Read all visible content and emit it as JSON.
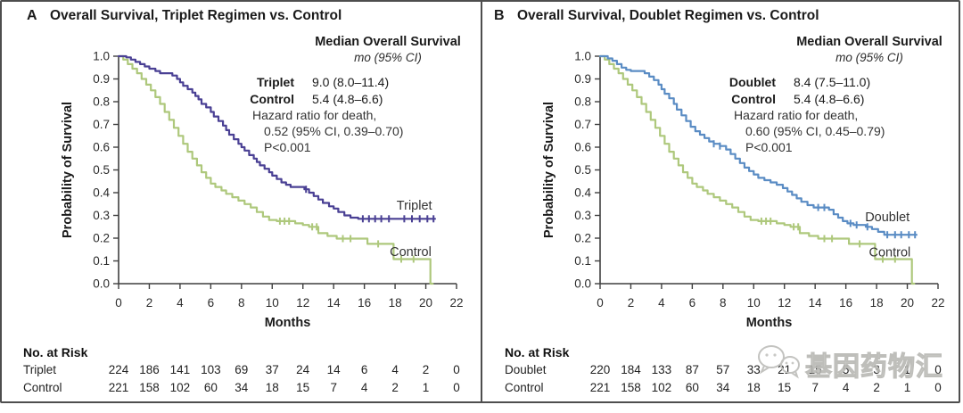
{
  "page": {
    "background": "#ffffff",
    "border_color": "#4e4e4e",
    "watermark": {
      "text": "基因药物汇",
      "icon": "chat-bubbles-icon"
    }
  },
  "chart_data": [
    {
      "type": "line",
      "subtype": "kaplan-meier-step",
      "panel_letter": "A",
      "title": "Overall Survival, Triplet Regimen vs. Control",
      "axes": {
        "xlabel": "Months",
        "ylabel": "Probability of Survival",
        "xlim": [
          0,
          22
        ],
        "ylim": [
          0.0,
          1.0
        ],
        "xticks": [
          0,
          2,
          4,
          6,
          8,
          10,
          12,
          14,
          16,
          18,
          20,
          22
        ],
        "yticks": [
          "1.0",
          "0.9",
          "0.8",
          "0.7",
          "0.6",
          "0.5",
          "0.4",
          "0.3",
          "0.2",
          "0.1",
          "0.0"
        ],
        "grid": false
      },
      "stats": {
        "header": "Median Overall Survival",
        "subheader": "mo (95% CI)",
        "rows": [
          {
            "name": "Triplet",
            "value": "9.0 (8.0–11.4)"
          },
          {
            "name": "Control",
            "value": "5.4 (4.8–6.6)"
          }
        ],
        "hazard_lines": [
          "Hazard ratio for death,",
          "0.52 (95% CI, 0.39–0.70)",
          "P<0.001"
        ]
      },
      "series": [
        {
          "name": "Triplet",
          "color": "#4a4094",
          "label_pos": [
            18.1,
            0.325
          ],
          "points": [
            [
              0,
              1.0
            ],
            [
              0.5,
              0.995
            ],
            [
              0.8,
              0.985
            ],
            [
              1.1,
              0.975
            ],
            [
              1.4,
              0.965
            ],
            [
              1.7,
              0.955
            ],
            [
              2.0,
              0.945
            ],
            [
              2.4,
              0.935
            ],
            [
              2.7,
              0.925
            ],
            [
              3.5,
              0.915
            ],
            [
              3.8,
              0.9
            ],
            [
              4.0,
              0.885
            ],
            [
              4.2,
              0.87
            ],
            [
              4.5,
              0.855
            ],
            [
              4.8,
              0.84
            ],
            [
              5.0,
              0.825
            ],
            [
              5.2,
              0.81
            ],
            [
              5.4,
              0.79
            ],
            [
              5.7,
              0.775
            ],
            [
              6.0,
              0.755
            ],
            [
              6.2,
              0.735
            ],
            [
              6.5,
              0.715
            ],
            [
              6.8,
              0.695
            ],
            [
              7.0,
              0.675
            ],
            [
              7.2,
              0.655
            ],
            [
              7.5,
              0.635
            ],
            [
              7.8,
              0.615
            ],
            [
              8.0,
              0.6
            ],
            [
              8.2,
              0.585
            ],
            [
              8.5,
              0.565
            ],
            [
              8.8,
              0.55
            ],
            [
              9.0,
              0.535
            ],
            [
              9.2,
              0.52
            ],
            [
              9.5,
              0.505
            ],
            [
              9.8,
              0.49
            ],
            [
              10.0,
              0.475
            ],
            [
              10.3,
              0.46
            ],
            [
              10.6,
              0.445
            ],
            [
              10.9,
              0.435
            ],
            [
              11.2,
              0.425
            ],
            [
              12.1,
              0.415
            ],
            [
              12.4,
              0.4
            ],
            [
              12.7,
              0.385
            ],
            [
              13.0,
              0.37
            ],
            [
              13.3,
              0.355
            ],
            [
              13.7,
              0.34
            ],
            [
              14.0,
              0.33
            ],
            [
              14.3,
              0.315
            ],
            [
              14.7,
              0.3
            ],
            [
              15.1,
              0.29
            ],
            [
              15.6,
              0.285
            ],
            [
              20.6,
              0.285
            ]
          ],
          "censors": [
            12.2,
            15.9,
            16.3,
            16.7,
            17.1,
            17.6,
            18.6,
            19.1,
            19.6,
            20.1,
            20.5
          ]
        },
        {
          "name": "Control",
          "color": "#aec87c",
          "label_pos": [
            17.65,
            0.122
          ],
          "points": [
            [
              0,
              1.0
            ],
            [
              0.3,
              0.985
            ],
            [
              0.6,
              0.965
            ],
            [
              0.9,
              0.945
            ],
            [
              1.2,
              0.925
            ],
            [
              1.5,
              0.9
            ],
            [
              1.8,
              0.875
            ],
            [
              2.1,
              0.85
            ],
            [
              2.4,
              0.82
            ],
            [
              2.7,
              0.79
            ],
            [
              3.0,
              0.755
            ],
            [
              3.3,
              0.72
            ],
            [
              3.6,
              0.685
            ],
            [
              3.9,
              0.65
            ],
            [
              4.2,
              0.615
            ],
            [
              4.5,
              0.58
            ],
            [
              4.8,
              0.55
            ],
            [
              5.1,
              0.52
            ],
            [
              5.4,
              0.49
            ],
            [
              5.7,
              0.465
            ],
            [
              6.0,
              0.44
            ],
            [
              6.3,
              0.425
            ],
            [
              6.7,
              0.41
            ],
            [
              7.0,
              0.395
            ],
            [
              7.4,
              0.38
            ],
            [
              7.8,
              0.365
            ],
            [
              8.2,
              0.35
            ],
            [
              8.6,
              0.335
            ],
            [
              9.0,
              0.315
            ],
            [
              9.4,
              0.295
            ],
            [
              9.8,
              0.28
            ],
            [
              10.3,
              0.275
            ],
            [
              11.5,
              0.265
            ],
            [
              12.0,
              0.258
            ],
            [
              12.4,
              0.25
            ],
            [
              13.0,
              0.222
            ],
            [
              13.6,
              0.21
            ],
            [
              14.2,
              0.198
            ],
            [
              16.2,
              0.175
            ],
            [
              17.9,
              0.108
            ],
            [
              20.3,
              0.0
            ],
            [
              20.45,
              0.0
            ]
          ],
          "censors": [
            10.5,
            10.8,
            11.1,
            12.6,
            12.9,
            14.6,
            15.1,
            16.9,
            18.4,
            19.2
          ]
        }
      ],
      "risk_table": {
        "header": "No. at Risk",
        "rows": [
          {
            "label": "Triplet",
            "values": [
              224,
              186,
              141,
              103,
              69,
              37,
              24,
              14,
              6,
              4,
              2,
              0
            ]
          },
          {
            "label": "Control",
            "values": [
              221,
              158,
              102,
              60,
              34,
              18,
              15,
              7,
              4,
              2,
              1,
              0
            ]
          }
        ]
      }
    },
    {
      "type": "line",
      "subtype": "kaplan-meier-step",
      "panel_letter": "B",
      "title": "Overall Survival, Doublet Regimen vs. Control",
      "axes": {
        "xlabel": "Months",
        "ylabel": "Probability of Survival",
        "xlim": [
          0,
          22
        ],
        "ylim": [
          0.0,
          1.0
        ],
        "xticks": [
          0,
          2,
          4,
          6,
          8,
          10,
          12,
          14,
          16,
          18,
          20,
          22
        ],
        "yticks": [
          "1.0",
          "0.9",
          "0.8",
          "0.7",
          "0.6",
          "0.5",
          "0.4",
          "0.3",
          "0.2",
          "0.1",
          "0.0"
        ],
        "grid": false
      },
      "stats": {
        "header": "Median Overall Survival",
        "subheader": "mo (95% CI)",
        "rows": [
          {
            "name": "Doublet",
            "value": "8.4 (7.5–11.0)"
          },
          {
            "name": "Control",
            "value": "5.4 (4.8–6.6)"
          }
        ],
        "hazard_lines": [
          "Hazard ratio for death,",
          "0.60 (95% CI, 0.45–0.79)",
          "P<0.001"
        ]
      },
      "series": [
        {
          "name": "Doublet",
          "color": "#5a8cc4",
          "label_pos": [
            17.25,
            0.275
          ],
          "points": [
            [
              0,
              1.0
            ],
            [
              0.5,
              0.99
            ],
            [
              0.8,
              0.98
            ],
            [
              1.1,
              0.965
            ],
            [
              1.4,
              0.95
            ],
            [
              1.7,
              0.94
            ],
            [
              2.0,
              0.935
            ],
            [
              2.9,
              0.925
            ],
            [
              3.2,
              0.91
            ],
            [
              3.5,
              0.895
            ],
            [
              3.8,
              0.875
            ],
            [
              4.0,
              0.855
            ],
            [
              4.2,
              0.835
            ],
            [
              4.5,
              0.815
            ],
            [
              4.8,
              0.79
            ],
            [
              5.0,
              0.765
            ],
            [
              5.3,
              0.74
            ],
            [
              5.6,
              0.715
            ],
            [
              5.9,
              0.69
            ],
            [
              6.2,
              0.67
            ],
            [
              6.5,
              0.655
            ],
            [
              6.8,
              0.64
            ],
            [
              7.1,
              0.625
            ],
            [
              7.4,
              0.615
            ],
            [
              7.8,
              0.605
            ],
            [
              8.2,
              0.59
            ],
            [
              8.5,
              0.57
            ],
            [
              8.8,
              0.55
            ],
            [
              9.1,
              0.53
            ],
            [
              9.4,
              0.51
            ],
            [
              9.7,
              0.495
            ],
            [
              10.0,
              0.48
            ],
            [
              10.3,
              0.465
            ],
            [
              10.7,
              0.455
            ],
            [
              11.1,
              0.445
            ],
            [
              11.5,
              0.435
            ],
            [
              11.9,
              0.42
            ],
            [
              12.2,
              0.405
            ],
            [
              12.5,
              0.39
            ],
            [
              12.8,
              0.375
            ],
            [
              13.1,
              0.36
            ],
            [
              13.5,
              0.345
            ],
            [
              13.9,
              0.335
            ],
            [
              14.9,
              0.325
            ],
            [
              15.2,
              0.305
            ],
            [
              15.5,
              0.29
            ],
            [
              15.8,
              0.275
            ],
            [
              16.1,
              0.265
            ],
            [
              16.5,
              0.258
            ],
            [
              17.3,
              0.25
            ],
            [
              17.7,
              0.24
            ],
            [
              18.1,
              0.228
            ],
            [
              18.5,
              0.215
            ],
            [
              20.6,
              0.215
            ]
          ],
          "censors": [
            7.4,
            7.8,
            14.2,
            14.6,
            16.3,
            16.7,
            17.4,
            18.7,
            19.2,
            19.6,
            20.1,
            20.5
          ]
        },
        {
          "name": "Control",
          "color": "#aec87c",
          "label_pos": [
            17.5,
            0.12
          ],
          "points": [
            [
              0,
              1.0
            ],
            [
              0.3,
              0.985
            ],
            [
              0.6,
              0.965
            ],
            [
              0.9,
              0.945
            ],
            [
              1.2,
              0.925
            ],
            [
              1.5,
              0.9
            ],
            [
              1.8,
              0.875
            ],
            [
              2.1,
              0.85
            ],
            [
              2.4,
              0.82
            ],
            [
              2.7,
              0.79
            ],
            [
              3.0,
              0.755
            ],
            [
              3.3,
              0.72
            ],
            [
              3.6,
              0.685
            ],
            [
              3.9,
              0.65
            ],
            [
              4.2,
              0.615
            ],
            [
              4.5,
              0.58
            ],
            [
              4.8,
              0.55
            ],
            [
              5.1,
              0.52
            ],
            [
              5.4,
              0.49
            ],
            [
              5.7,
              0.465
            ],
            [
              6.0,
              0.44
            ],
            [
              6.3,
              0.425
            ],
            [
              6.7,
              0.41
            ],
            [
              7.0,
              0.395
            ],
            [
              7.4,
              0.38
            ],
            [
              7.8,
              0.365
            ],
            [
              8.2,
              0.35
            ],
            [
              8.6,
              0.335
            ],
            [
              9.0,
              0.315
            ],
            [
              9.4,
              0.295
            ],
            [
              9.8,
              0.28
            ],
            [
              10.3,
              0.275
            ],
            [
              11.5,
              0.265
            ],
            [
              12.0,
              0.258
            ],
            [
              12.4,
              0.25
            ],
            [
              13.0,
              0.222
            ],
            [
              13.6,
              0.21
            ],
            [
              14.2,
              0.198
            ],
            [
              16.2,
              0.175
            ],
            [
              17.9,
              0.108
            ],
            [
              20.3,
              0.0
            ],
            [
              20.45,
              0.0
            ]
          ],
          "censors": [
            10.5,
            10.8,
            11.1,
            12.6,
            12.9,
            14.6,
            15.1,
            16.9,
            18.4,
            19.2
          ]
        }
      ],
      "risk_table": {
        "header": "No. at Risk",
        "rows": [
          {
            "label": "Doublet",
            "values": [
              220,
              184,
              133,
              87,
              57,
              33,
              21,
              15,
              5,
              3,
              1,
              0
            ]
          },
          {
            "label": "Control",
            "values": [
              221,
              158,
              102,
              60,
              34,
              18,
              15,
              7,
              4,
              2,
              1,
              0
            ]
          }
        ]
      }
    }
  ]
}
